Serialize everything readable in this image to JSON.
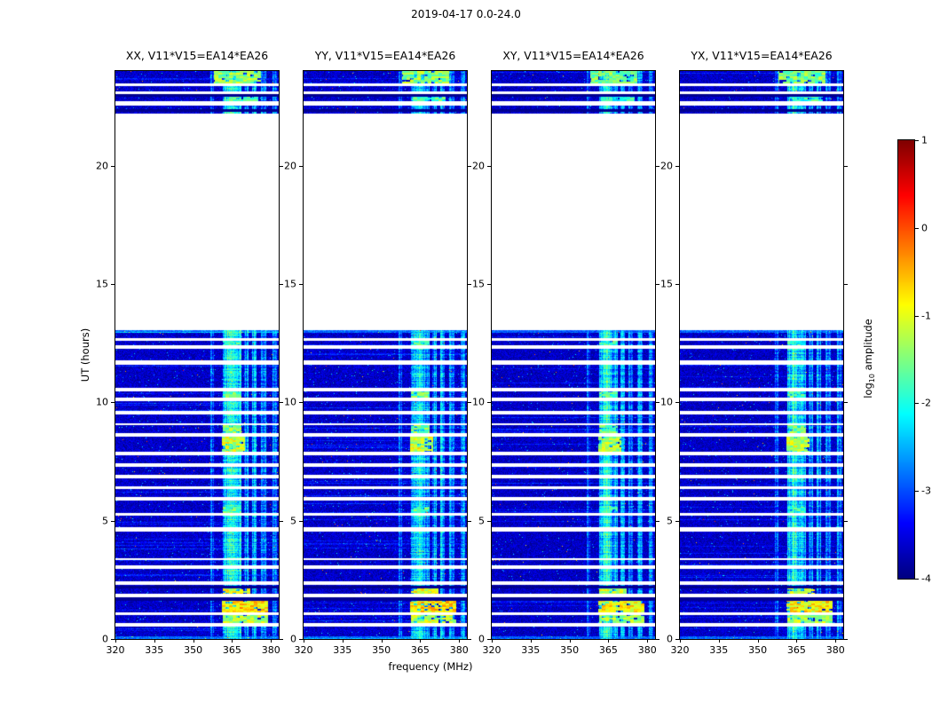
{
  "chart_data": {
    "type": "heatmap",
    "title": "2019-04-17 0.0-24.0",
    "xlabel": "frequency (MHz)",
    "ylabel": "UT (hours)",
    "x_range": [
      320,
      383
    ],
    "x_ticks": [
      320,
      335,
      350,
      365,
      380
    ],
    "y_range": [
      0,
      24
    ],
    "y_ticks": [
      0,
      5,
      10,
      15,
      20
    ],
    "panels": [
      {
        "label": "XX, V11*V15=EA14*EA26",
        "seed": 101,
        "gain": 1.0
      },
      {
        "label": "YY, V11*V15=EA14*EA26",
        "seed": 202,
        "gain": 1.0
      },
      {
        "label": "XY, V11*V15=EA14*EA26",
        "seed": 303,
        "gain": 0.94
      },
      {
        "label": "YX, V11*V15=EA14*EA26",
        "seed": 404,
        "gain": 0.96
      }
    ],
    "colorbar": {
      "label": "log10 amplitude",
      "label_prefix": "log",
      "label_sub": "10",
      "label_suffix": " amplitude",
      "ticks": [
        1,
        0,
        -1,
        -2,
        -3,
        -4
      ],
      "range": [
        -4,
        1
      ],
      "colormap": "jet"
    },
    "time_segments": [
      [
        0.0,
        13.05
      ],
      [
        22.2,
        24.0
      ]
    ],
    "gaps": [
      [
        0.52,
        0.68
      ],
      [
        1.02,
        1.14
      ],
      [
        1.78,
        1.9
      ],
      [
        2.3,
        2.42
      ],
      [
        2.98,
        3.12
      ],
      [
        3.32,
        3.42
      ],
      [
        4.55,
        4.72
      ],
      [
        5.2,
        5.34
      ],
      [
        5.86,
        6.0
      ],
      [
        6.32,
        6.46
      ],
      [
        6.78,
        6.92
      ],
      [
        7.28,
        7.42
      ],
      [
        7.78,
        7.9
      ],
      [
        8.56,
        8.7
      ],
      [
        9.02,
        9.12
      ],
      [
        9.48,
        9.62
      ],
      [
        10.06,
        10.2
      ],
      [
        10.48,
        10.62
      ],
      [
        11.58,
        11.76
      ],
      [
        12.28,
        12.42
      ],
      [
        12.6,
        12.7
      ],
      [
        22.55,
        22.72
      ],
      [
        23.02,
        23.12
      ],
      [
        23.38,
        23.48
      ]
    ],
    "dark_rows": [
      [
        1.62,
        1.76
      ],
      [
        2.12,
        2.26
      ],
      [
        22.28,
        22.4
      ],
      [
        22.92,
        23.02
      ]
    ],
    "bright_rows": [
      [
        0.0,
        0.1
      ],
      [
        12.92,
        13.05
      ]
    ],
    "noise": {
      "mean": -3.65,
      "spread": 0.3
    },
    "rfi_bands": [
      {
        "f": [
          356.5,
          358.0
        ],
        "amp": -3.1
      },
      {
        "f": [
          361.5,
          363.0
        ],
        "amp": -2.3
      },
      {
        "f": [
          363.0,
          365.5
        ],
        "amp": -2.0
      },
      {
        "f": [
          365.5,
          368.5
        ],
        "amp": -2.4
      },
      {
        "f": [
          369.8,
          371.2
        ],
        "amp": -2.7
      },
      {
        "f": [
          372.8,
          374.6
        ],
        "amp": -2.6
      },
      {
        "f": [
          376.0,
          378.2
        ],
        "amp": -2.7
      },
      {
        "f": [
          380.5,
          382.2
        ],
        "amp": -2.8
      }
    ],
    "blobs": [
      {
        "t": [
          0.68,
          1.02
        ],
        "f": [
          361.5,
          379.0
        ],
        "amp": -1.3
      },
      {
        "t": [
          1.14,
          1.62
        ],
        "f": [
          361.0,
          379.0
        ],
        "amp": -0.8
      },
      {
        "t": [
          1.9,
          2.12
        ],
        "f": [
          361.5,
          372.0
        ],
        "amp": -1.1
      },
      {
        "t": [
          5.34,
          5.6
        ],
        "f": [
          361.5,
          368.5
        ],
        "amp": -1.8
      },
      {
        "t": [
          7.9,
          8.56
        ],
        "f": [
          361.0,
          370.0
        ],
        "amp": -1.2
      },
      {
        "t": [
          8.7,
          9.02
        ],
        "f": [
          361.5,
          368.5
        ],
        "amp": -1.6
      },
      {
        "t": [
          10.2,
          10.48
        ],
        "f": [
          361.5,
          368.5
        ],
        "amp": -1.8
      },
      {
        "t": [
          12.42,
          12.6
        ],
        "f": [
          361.5,
          368.5
        ],
        "amp": -2.0
      },
      {
        "t": [
          22.72,
          22.92
        ],
        "f": [
          362.0,
          375.0
        ],
        "amp": -1.9
      },
      {
        "t": [
          23.48,
          24.0
        ],
        "f": [
          358.0,
          376.0
        ],
        "amp": -1.5
      }
    ]
  }
}
